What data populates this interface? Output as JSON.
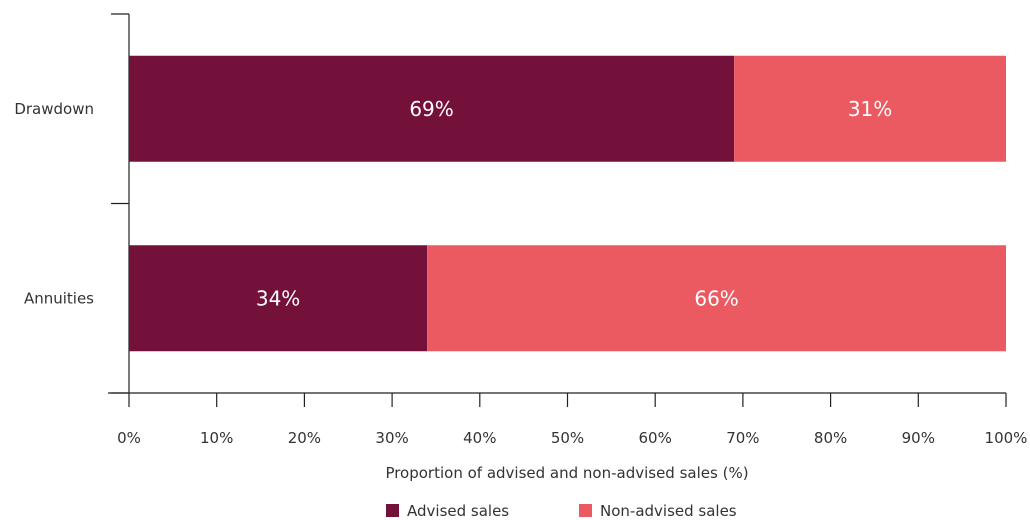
{
  "chart_data": {
    "type": "bar",
    "orientation": "horizontal",
    "stacked": true,
    "categories": [
      "Drawdown",
      "Annuities"
    ],
    "series": [
      {
        "name": "Advised sales",
        "values": [
          69,
          34
        ],
        "labels": [
          "69%",
          "34%"
        ],
        "color": "#73113b"
      },
      {
        "name": "Non-advised sales",
        "values": [
          31,
          66
        ],
        "labels": [
          "31%",
          "66%"
        ],
        "color": "#eb5a60"
      }
    ],
    "xlabel": "Proportion of advised and non-advised sales (%)",
    "xlim": [
      0,
      100
    ],
    "xticks": [
      0,
      10,
      20,
      30,
      40,
      50,
      60,
      70,
      80,
      90,
      100
    ],
    "xtick_labels": [
      "0%",
      "10%",
      "20%",
      "30%",
      "40%",
      "50%",
      "60%",
      "70%",
      "80%",
      "90%",
      "100%"
    ],
    "grid": false,
    "legend_position": "bottom"
  }
}
